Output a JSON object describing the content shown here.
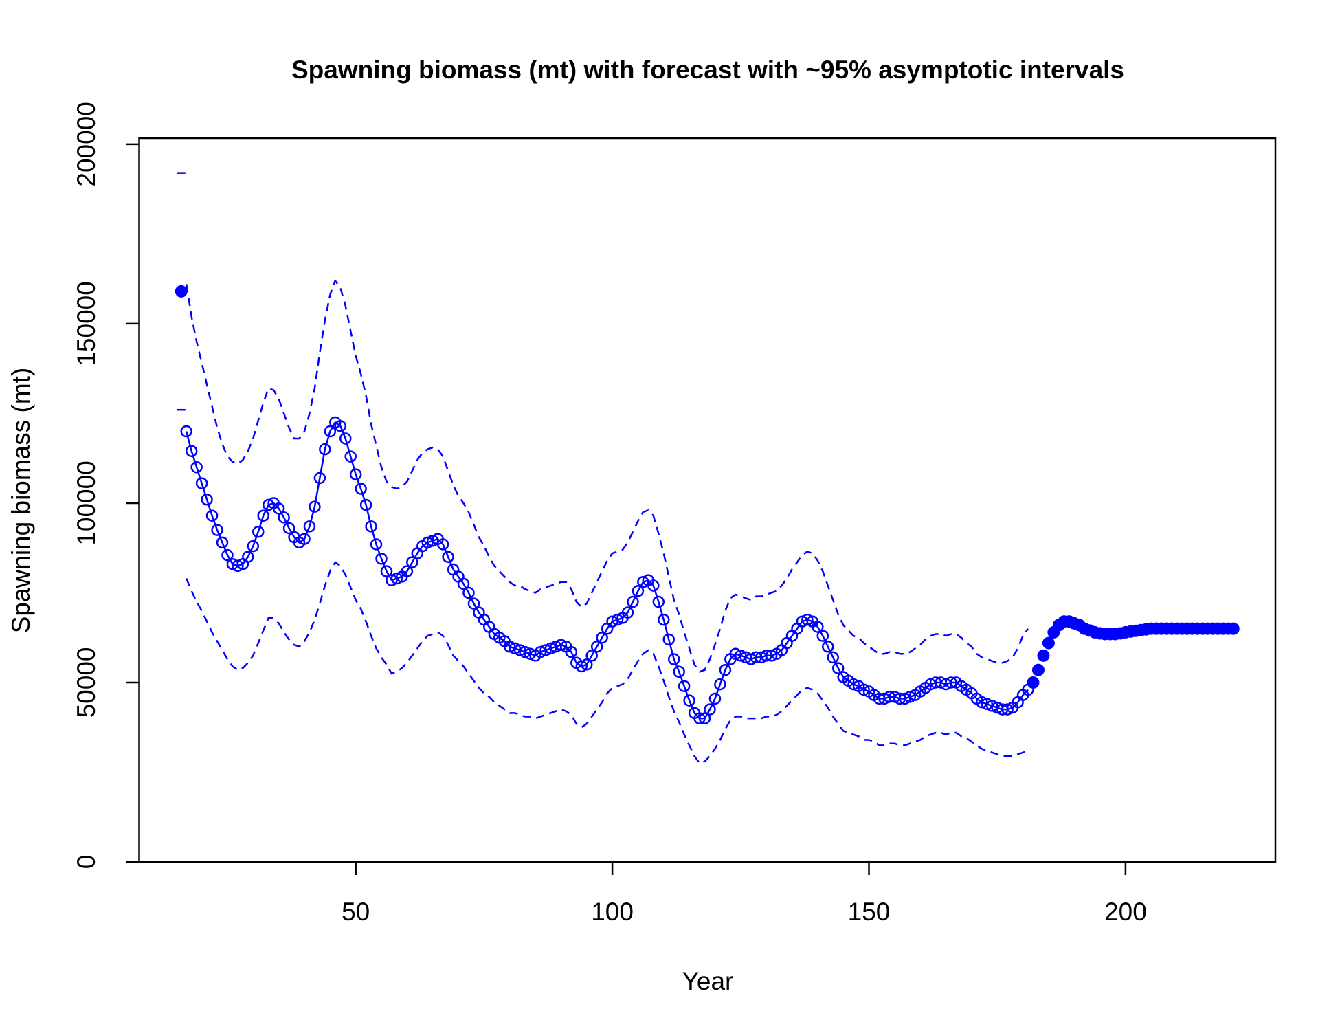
{
  "chart_data": {
    "type": "line",
    "title": "Spawning biomass (mt) with forecast with ~95% asymptotic intervals",
    "xlabel": "Year",
    "ylabel": "Spawning biomass (mt)",
    "xlim": [
      7.8,
      229.2
    ],
    "ylim": [
      0,
      201700
    ],
    "xticks": [
      50,
      100,
      150,
      200
    ],
    "yticks": [
      0,
      50000,
      100000,
      150000,
      200000
    ],
    "color": "#0000ff",
    "interval_style": "dashed",
    "series": [
      {
        "marker": "filled",
        "line": false,
        "x": [
          16
        ],
        "values": [
          159000
        ],
        "upper": [
          192000
        ],
        "lower": [
          126000
        ]
      },
      {
        "marker": "open",
        "line": true,
        "x": [
          17,
          18,
          19,
          20,
          21,
          22,
          23,
          24,
          25,
          26,
          27,
          28,
          29,
          30,
          31,
          32,
          33,
          34,
          35,
          36,
          37,
          38,
          39,
          40,
          41,
          42,
          43,
          44,
          45,
          46,
          47,
          48,
          49,
          50,
          51,
          52,
          53,
          54,
          55,
          56,
          57,
          58,
          59,
          60,
          61,
          62,
          63,
          64,
          65,
          66,
          67,
          68,
          69,
          70,
          71,
          72,
          73,
          74,
          75,
          76,
          77,
          78,
          79,
          80,
          81,
          82,
          83,
          84,
          85,
          86,
          87,
          88,
          89,
          90,
          91,
          92,
          93,
          94,
          95,
          96,
          97,
          98,
          99,
          100,
          101,
          102,
          103,
          104,
          105,
          106,
          107,
          108,
          109,
          110,
          111,
          112,
          113,
          114,
          115,
          116,
          117,
          118,
          119,
          120,
          121,
          122,
          123,
          124,
          125,
          126,
          127,
          128,
          129,
          130,
          131,
          132,
          133,
          134,
          135,
          136,
          137,
          138,
          139,
          140,
          141,
          142,
          143,
          144,
          145,
          146,
          147,
          148,
          149,
          150,
          151,
          152,
          153,
          154,
          155,
          156,
          157,
          158,
          159,
          160,
          161,
          162,
          163,
          164,
          165,
          166,
          167,
          168,
          169,
          170,
          171,
          172,
          173,
          174,
          175,
          176,
          177,
          178,
          179,
          180,
          181
        ],
        "values": [
          120000,
          114500,
          110000,
          105500,
          101000,
          96500,
          92500,
          89000,
          85500,
          83000,
          82500,
          83000,
          85000,
          88000,
          92000,
          96500,
          99500,
          100000,
          98500,
          96000,
          93000,
          90500,
          89000,
          90000,
          93500,
          99000,
          107000,
          115000,
          120000,
          122500,
          121500,
          118000,
          113000,
          108000,
          104000,
          99500,
          93500,
          88500,
          84500,
          81000,
          78500,
          79000,
          79500,
          81000,
          83500,
          86000,
          88000,
          89000,
          89500,
          90000,
          88500,
          85000,
          81500,
          79500,
          77500,
          75000,
          72000,
          69500,
          67500,
          65500,
          63500,
          62500,
          61500,
          60000,
          59500,
          59000,
          58500,
          58000,
          57500,
          58500,
          59000,
          59500,
          60000,
          60500,
          60000,
          58500,
          55500,
          54500,
          55000,
          57500,
          60000,
          62500,
          65000,
          67000,
          67500,
          68000,
          69500,
          72500,
          75500,
          78000,
          78500,
          77000,
          72500,
          67500,
          62000,
          56500,
          53000,
          49000,
          45000,
          41500,
          40000,
          40000,
          42500,
          45500,
          49500,
          53500,
          56500,
          58000,
          57500,
          57000,
          56500,
          57000,
          57000,
          57500,
          57500,
          58000,
          59000,
          61000,
          63000,
          65000,
          67000,
          67500,
          67000,
          65500,
          63000,
          60000,
          57000,
          54000,
          51500,
          50500,
          49500,
          49000,
          48000,
          47500,
          46500,
          45500,
          45500,
          46000,
          46000,
          45500,
          45500,
          46000,
          46500,
          47500,
          48500,
          49500,
          50000,
          50000,
          49500,
          50000,
          50000,
          49000,
          48000,
          47000,
          45500,
          44500,
          44000,
          43500,
          43000,
          42500,
          42500,
          43000,
          44500,
          46500,
          48000
        ],
        "upper": [
          161000,
          152000,
          145000,
          139000,
          133000,
          127000,
          121000,
          116500,
          113000,
          111500,
          111000,
          112000,
          114500,
          118000,
          123000,
          128000,
          132000,
          131500,
          129000,
          125000,
          121000,
          118000,
          118000,
          120000,
          125000,
          132000,
          142000,
          151000,
          158000,
          162000,
          160000,
          155000,
          148000,
          141000,
          136000,
          130000,
          122000,
          116000,
          110000,
          106000,
          104500,
          104000,
          104500,
          106000,
          109000,
          112000,
          114000,
          115000,
          115500,
          115000,
          113000,
          109000,
          105000,
          102000,
          100000,
          97500,
          94000,
          90500,
          88000,
          85000,
          82500,
          81000,
          79500,
          78000,
          77000,
          77000,
          76000,
          75500,
          75000,
          76000,
          76500,
          77000,
          77500,
          78000,
          78000,
          76000,
          72500,
          71000,
          72000,
          75000,
          78000,
          81000,
          84000,
          86000,
          86500,
          87000,
          89000,
          92000,
          95000,
          97500,
          98000,
          96500,
          91500,
          86000,
          79500,
          73000,
          69000,
          64000,
          59500,
          55000,
          53000,
          53500,
          56500,
          60500,
          65000,
          70000,
          73500,
          74500,
          74000,
          73500,
          73000,
          74000,
          74000,
          74500,
          75000,
          75500,
          77000,
          79000,
          81500,
          83500,
          85500,
          86500,
          86000,
          84000,
          81000,
          77000,
          73000,
          69000,
          66000,
          64500,
          63000,
          62500,
          61000,
          60000,
          59000,
          58000,
          58000,
          58500,
          58500,
          58000,
          58000,
          58500,
          59500,
          60500,
          62000,
          63000,
          63500,
          63500,
          63000,
          63500,
          63500,
          62500,
          61000,
          60000,
          58000,
          57000,
          56500,
          56000,
          55500,
          55500,
          56000,
          57000,
          59500,
          63000,
          65000
        ],
        "lower": [
          79000,
          75500,
          72500,
          70000,
          67000,
          64000,
          61500,
          59000,
          56500,
          54500,
          53500,
          54000,
          55500,
          57500,
          61000,
          64500,
          68000,
          68000,
          66500,
          64000,
          62000,
          60500,
          60000,
          61500,
          64000,
          67500,
          72000,
          77000,
          81000,
          83500,
          82500,
          80000,
          76500,
          73000,
          70500,
          67000,
          63000,
          59500,
          57000,
          55000,
          52500,
          53000,
          54000,
          55500,
          57500,
          59500,
          61500,
          63000,
          63500,
          64000,
          63000,
          60500,
          57500,
          56000,
          54500,
          52500,
          50500,
          48500,
          47000,
          46000,
          44500,
          43500,
          42500,
          41500,
          41500,
          41000,
          40500,
          40500,
          40000,
          40500,
          41000,
          41500,
          42000,
          42500,
          42000,
          41000,
          38500,
          37500,
          38500,
          40500,
          42500,
          44500,
          47000,
          48500,
          49000,
          49500,
          51000,
          53500,
          56000,
          58000,
          59000,
          58000,
          54500,
          50500,
          46000,
          42000,
          39000,
          35500,
          32500,
          29500,
          27500,
          28000,
          29500,
          31500,
          34000,
          37000,
          39500,
          40500,
          40500,
          40000,
          40000,
          40000,
          40000,
          40500,
          40500,
          41000,
          42000,
          43500,
          45000,
          46500,
          48000,
          48500,
          48000,
          47000,
          45000,
          43000,
          40500,
          38500,
          36500,
          36000,
          35500,
          35000,
          34000,
          34000,
          33500,
          32500,
          32500,
          33000,
          33000,
          32500,
          32500,
          33000,
          33500,
          34000,
          35000,
          35500,
          36000,
          36000,
          35500,
          36000,
          36000,
          35000,
          34500,
          33500,
          32500,
          31500,
          31000,
          30500,
          30000,
          29500,
          29500,
          29500,
          30000,
          30500,
          31000
        ]
      },
      {
        "marker": "filled",
        "line": false,
        "x": [
          182,
          183,
          184,
          185,
          186,
          187,
          188,
          189,
          190,
          191,
          192,
          193,
          194,
          195,
          196,
          197,
          198,
          199,
          200,
          201,
          202,
          203,
          204,
          205,
          206,
          207,
          208,
          209,
          210,
          211,
          212,
          213,
          214,
          215,
          216,
          217,
          218,
          219,
          220,
          221
        ],
        "values": [
          50000,
          53500,
          57500,
          61000,
          64000,
          66000,
          67000,
          67000,
          66500,
          66000,
          65000,
          64500,
          64000,
          63700,
          63500,
          63500,
          63500,
          63700,
          64000,
          64200,
          64400,
          64600,
          64800,
          65000,
          65000,
          65000,
          65000,
          65000,
          65000,
          65000,
          65000,
          65000,
          65000,
          65000,
          65000,
          65000,
          65000,
          65000,
          65000,
          65000
        ]
      }
    ]
  }
}
